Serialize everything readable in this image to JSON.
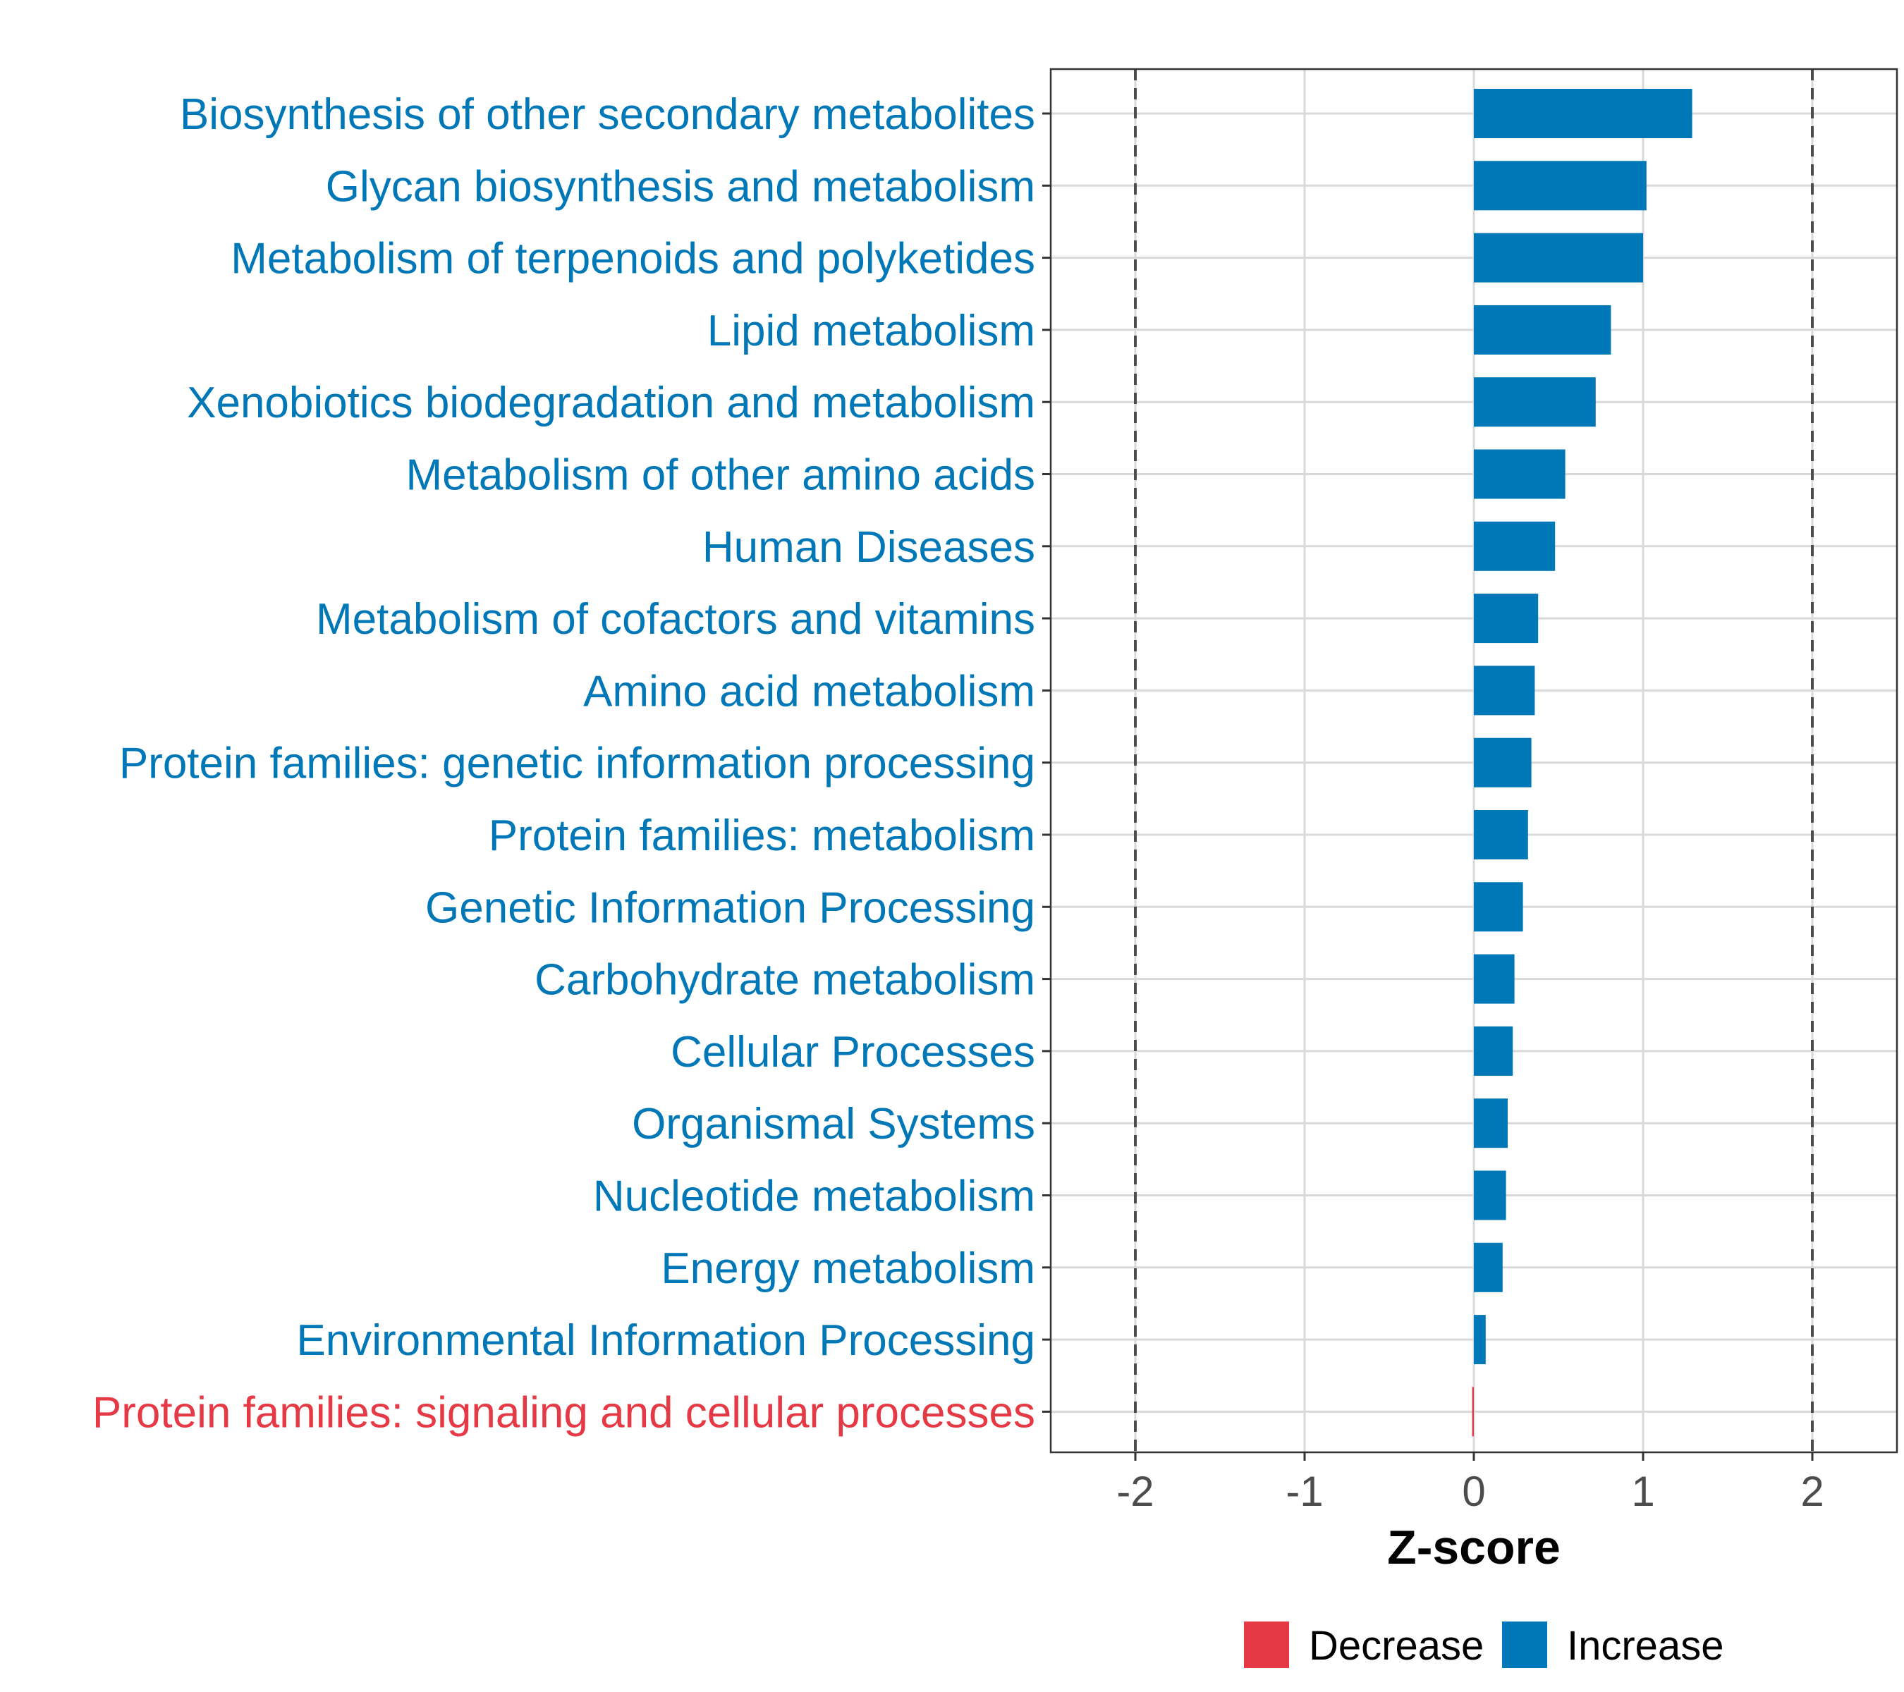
{
  "chart_data": {
    "type": "bar",
    "orientation": "horizontal",
    "title": "",
    "xlabel": "Z-score",
    "ylabel": "",
    "xlim": [
      -2.5,
      2.5
    ],
    "xticks": [
      -2,
      -1,
      0,
      1,
      2
    ],
    "xtick_labels": [
      "-2",
      "-1",
      "0",
      "1",
      "2"
    ],
    "reference_lines": [
      -2,
      2
    ],
    "grid": true,
    "categories": [
      "Biosynthesis of other secondary metabolites",
      "Glycan biosynthesis and metabolism",
      "Metabolism of terpenoids and polyketides",
      "Lipid metabolism",
      "Xenobiotics biodegradation and metabolism",
      "Metabolism of other amino acids",
      "Human Diseases",
      "Metabolism of cofactors and vitamins",
      "Amino acid metabolism",
      "Protein families: genetic information processing",
      "Protein families: metabolism",
      "Genetic Information Processing",
      "Carbohydrate metabolism",
      "Cellular Processes",
      "Organismal Systems",
      "Nucleotide metabolism",
      "Energy metabolism",
      "Environmental Information Processing",
      "Protein families: signaling and cellular processes"
    ],
    "values": [
      1.29,
      1.02,
      1.0,
      0.81,
      0.72,
      0.54,
      0.48,
      0.38,
      0.36,
      0.34,
      0.32,
      0.29,
      0.24,
      0.23,
      0.2,
      0.19,
      0.17,
      0.07,
      -0.01
    ],
    "groups": [
      "Increase",
      "Increase",
      "Increase",
      "Increase",
      "Increase",
      "Increase",
      "Increase",
      "Increase",
      "Increase",
      "Increase",
      "Increase",
      "Increase",
      "Increase",
      "Increase",
      "Increase",
      "Increase",
      "Increase",
      "Increase",
      "Decrease"
    ],
    "legend": {
      "position": "bottom",
      "entries": [
        {
          "label": "Decrease",
          "color": "#E63946"
        },
        {
          "label": "Increase",
          "color": "#0077B6"
        }
      ]
    }
  },
  "colors": {
    "increase": "#0077B6",
    "decrease": "#E63946",
    "grid": "#d9d9d9",
    "panel_border": "#333333",
    "reference_line": "#4d4d4d",
    "tick_text": "#4d4d4d"
  }
}
